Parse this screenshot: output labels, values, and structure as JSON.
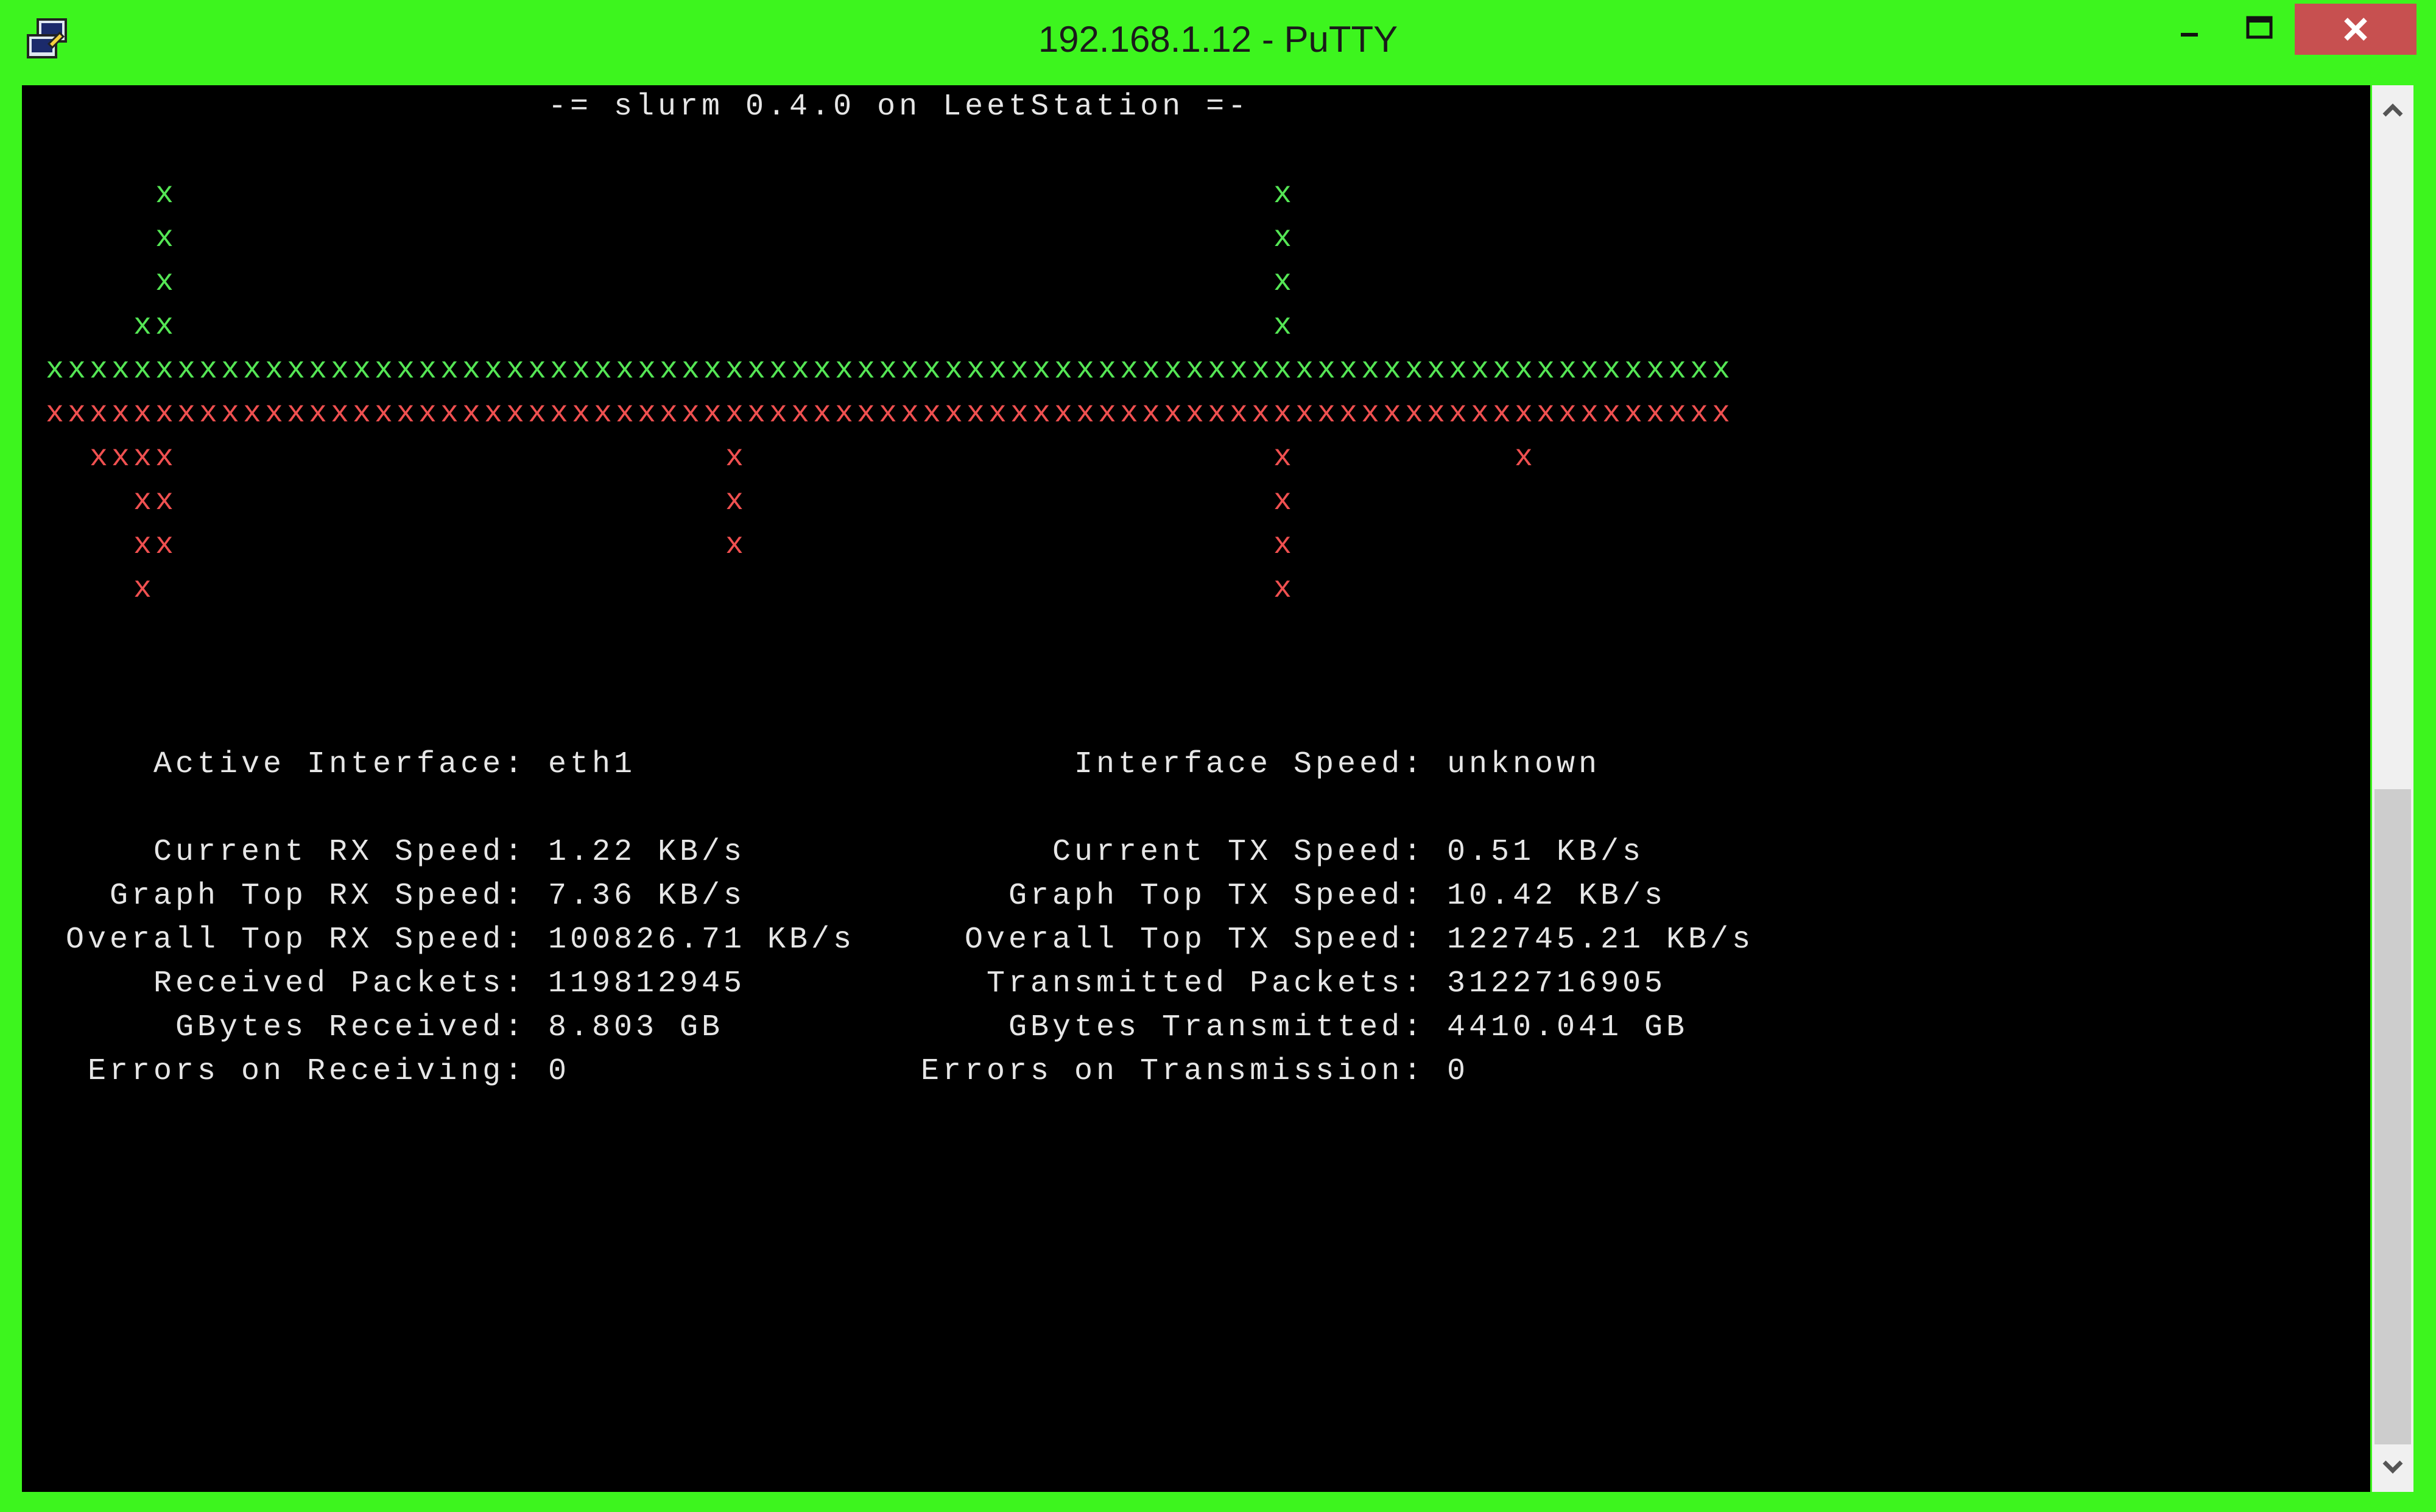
{
  "window": {
    "title": "192.168.1.12 - PuTTY",
    "icons": {
      "app": "putty-icon",
      "minimize": "minimize-icon",
      "maximize": "maximize-icon",
      "close": "close-icon"
    },
    "frame_color": "#3df51e",
    "close_color": "#c75050"
  },
  "terminal": {
    "header": "-= slurm 0.4.0 on LeetStation =-",
    "graph": {
      "rx_color": "#55e655",
      "tx_color": "#f05050",
      "glyph": "x",
      "rx_column_heights": [
        1,
        1,
        1,
        1,
        2,
        5,
        1,
        1,
        1,
        1,
        1,
        1,
        1,
        1,
        1,
        1,
        1,
        1,
        1,
        1,
        1,
        1,
        1,
        1,
        1,
        1,
        1,
        1,
        1,
        1,
        1,
        1,
        1,
        1,
        1,
        1,
        1,
        1,
        1,
        1,
        1,
        1,
        1,
        1,
        1,
        1,
        1,
        1,
        1,
        1,
        1,
        1,
        1,
        1,
        1,
        1,
        5,
        1,
        1,
        1,
        1,
        1,
        1,
        1,
        1,
        1,
        1,
        1,
        1,
        1,
        1,
        1,
        1,
        1,
        1,
        1,
        1
      ],
      "tx_column_heights": [
        1,
        1,
        2,
        2,
        5,
        4,
        1,
        1,
        1,
        1,
        1,
        1,
        1,
        1,
        1,
        1,
        1,
        1,
        1,
        1,
        1,
        1,
        1,
        1,
        1,
        1,
        1,
        1,
        1,
        1,
        1,
        4,
        1,
        1,
        1,
        1,
        1,
        1,
        1,
        1,
        1,
        1,
        1,
        1,
        1,
        1,
        1,
        1,
        1,
        1,
        1,
        1,
        1,
        1,
        1,
        1,
        5,
        1,
        1,
        1,
        1,
        1,
        1,
        1,
        1,
        1,
        1,
        2,
        1,
        1,
        1,
        1,
        1,
        1,
        1,
        1,
        1
      ]
    },
    "rx": {
      "active_interface_label": "Active Interface:",
      "active_interface": "eth1",
      "current_label": "Current RX Speed:",
      "current": "1.22 KB/s",
      "graph_top_label": "Graph Top RX Speed:",
      "graph_top": "7.36 KB/s",
      "overall_top_label": "Overall Top RX Speed:",
      "overall_top": "100826.71 KB/s",
      "packets_label": "Received Packets:",
      "packets": "119812945",
      "gbytes_label": "GBytes Received:",
      "gbytes": "8.803 GB",
      "errors_label": "Errors on Receiving:",
      "errors": "0"
    },
    "tx": {
      "speed_label": "Interface Speed:",
      "speed": "unknown",
      "current_label": "Current TX Speed:",
      "current": "0.51 KB/s",
      "graph_top_label": "Graph Top TX Speed:",
      "graph_top": "10.42 KB/s",
      "overall_top_label": "Overall Top TX Speed:",
      "overall_top": "122745.21 KB/s",
      "packets_label": "Transmitted Packets:",
      "packets": "3122716905",
      "gbytes_label": "GBytes Transmitted:",
      "gbytes": "4410.041 GB",
      "errors_label": "Errors on Transmission:",
      "errors": "0"
    }
  },
  "scrollbar": {
    "up_icon": "chevron-up-icon",
    "down_icon": "chevron-down-icon"
  }
}
